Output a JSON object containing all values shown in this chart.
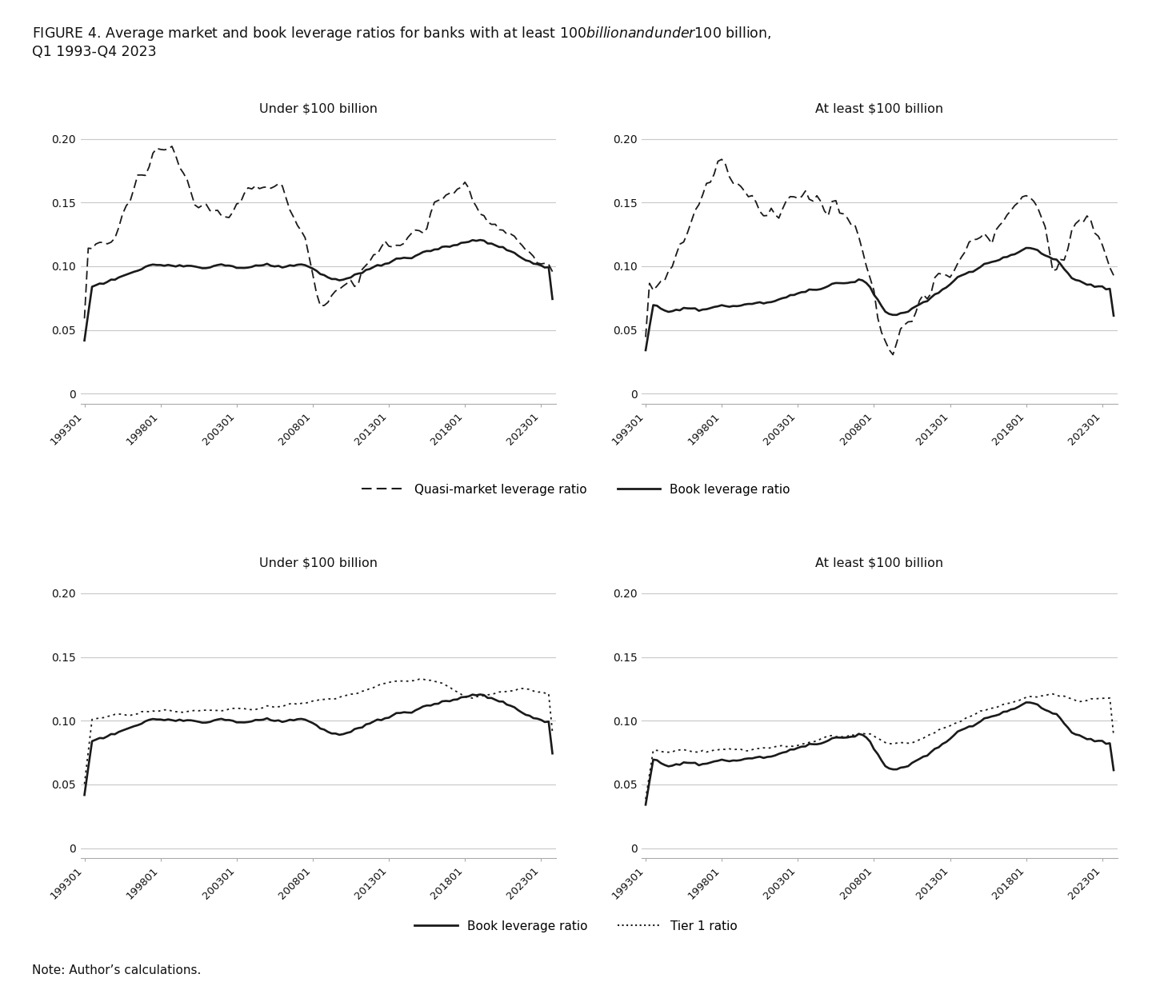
{
  "title_line1": "FIGURE 4. Average market and book leverage ratios for banks with at least $100 billion and under $100 billion,",
  "title_line2": "Q1 1993-Q4 2023",
  "note": "Note: Author’s calculations.",
  "subplot_titles": [
    [
      "Under $100 billion",
      "At least $100 billion"
    ],
    [
      "Under $100 billion",
      "At least $100 billion"
    ]
  ],
  "xtick_labels": [
    "199301",
    "199801",
    "200301",
    "200801",
    "201301",
    "201801",
    "202301"
  ],
  "ytick_values": [
    0,
    0.05,
    0.1,
    0.15,
    0.2
  ],
  "ytick_labels": [
    "0",
    "0.05",
    "0.10",
    "0.15",
    "0.20"
  ],
  "ylim": [
    -0.008,
    0.215
  ],
  "xlim": [
    -1,
    124
  ],
  "n_quarters": 124,
  "tick_positions": [
    0,
    20,
    40,
    60,
    80,
    100,
    120
  ],
  "legend_row1": [
    "Quasi-market leverage ratio",
    "Book leverage ratio"
  ],
  "legend_row2": [
    "Book leverage ratio",
    "Tier 1 ratio"
  ],
  "line_color": "#1a1a1a",
  "grid_color": "#c8c8c8",
  "bg_color": "#ffffff"
}
